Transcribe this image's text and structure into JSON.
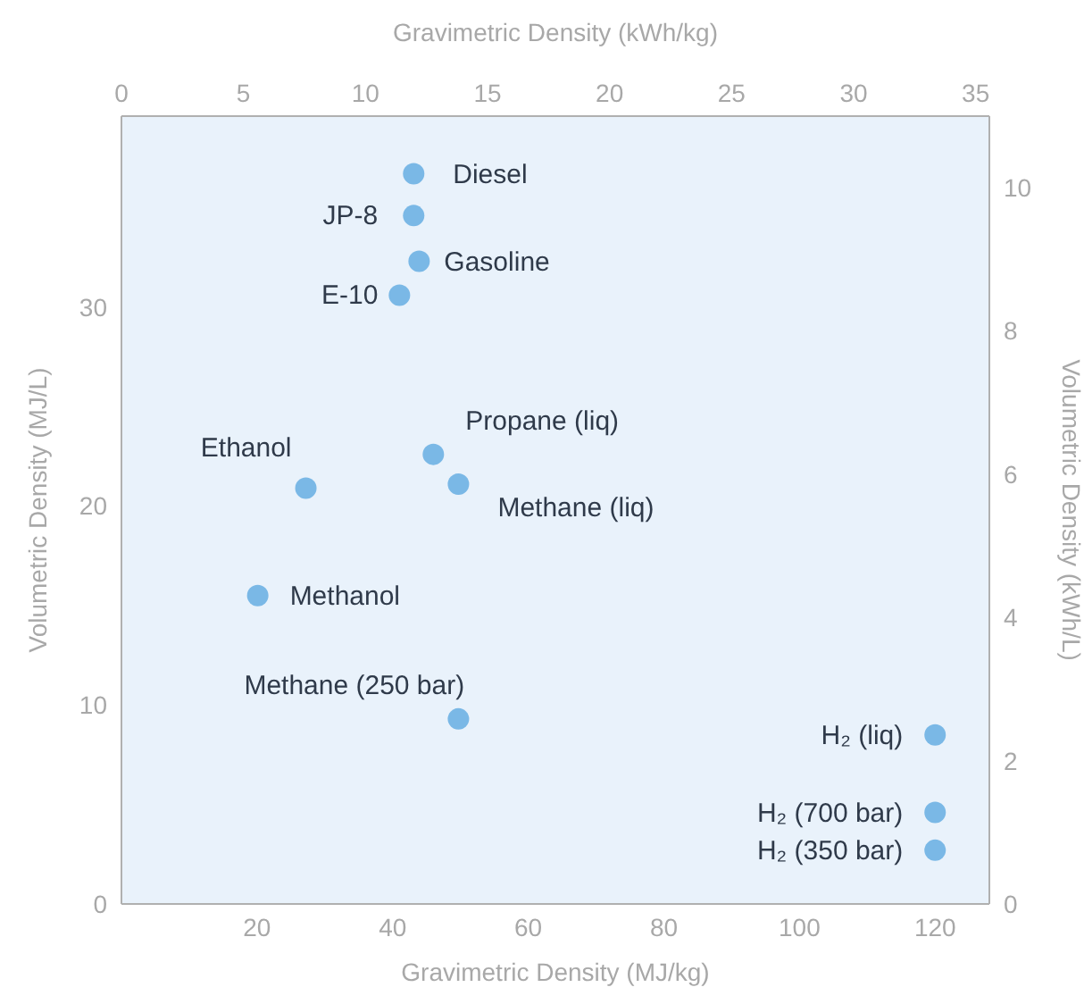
{
  "chart_data": {
    "type": "scatter",
    "xlabel": "Gravimetric Density (MJ/kg)",
    "ylabel": "Volumetric Density (MJ/L)",
    "x2label": "Gravimetric Density (kWh/kg)",
    "y2label": "Volumetric Density (kWh/L)",
    "x": [
      43.1,
      43.1,
      43.9,
      41.0,
      46.0,
      49.7,
      27.2,
      20.1,
      49.7,
      120,
      120,
      120
    ],
    "values": [
      36.7,
      34.6,
      32.3,
      30.6,
      22.6,
      21.1,
      20.9,
      15.5,
      9.3,
      8.5,
      4.6,
      2.7
    ],
    "color": "#7ab8e6",
    "marker": "circle",
    "grid": false,
    "xlim": [
      0,
      128
    ],
    "xticks": [
      20,
      40,
      60,
      80,
      100,
      120
    ],
    "ylim": [
      0,
      39.6
    ],
    "yticks": [
      0,
      10,
      20,
      30
    ],
    "x2lim": [
      0,
      35.56
    ],
    "x2ticks": [
      0,
      5,
      10,
      15,
      20,
      25,
      30,
      35
    ],
    "y2lim": [
      0,
      11
    ],
    "y2ticks": [
      0,
      2,
      4,
      6,
      8,
      10
    ],
    "annotations": [
      {
        "text": "Diesel",
        "x": 43.1,
        "y": 36.7
      },
      {
        "text": "JP-8",
        "x": 43.1,
        "y": 34.6
      },
      {
        "text": "Gasoline",
        "x": 43.9,
        "y": 32.3
      },
      {
        "text": "E-10",
        "x": 41.0,
        "y": 30.6
      },
      {
        "text": "Propane (liq)",
        "x": 46.0,
        "y": 22.6
      },
      {
        "text": "Methane (liq)",
        "x": 49.7,
        "y": 21.1
      },
      {
        "text": "Ethanol",
        "x": 27.2,
        "y": 20.9
      },
      {
        "text": "Methanol",
        "x": 20.1,
        "y": 15.5
      },
      {
        "text": "Methane (250 bar)",
        "x": 49.7,
        "y": 9.3
      },
      {
        "text": "H₂ (liq)",
        "x": 120,
        "y": 8.5
      },
      {
        "text": "H₂ (700 bar)",
        "x": 120,
        "y": 4.6
      },
      {
        "text": "H₂ (350 bar)",
        "x": 120,
        "y": 2.7
      }
    ]
  }
}
